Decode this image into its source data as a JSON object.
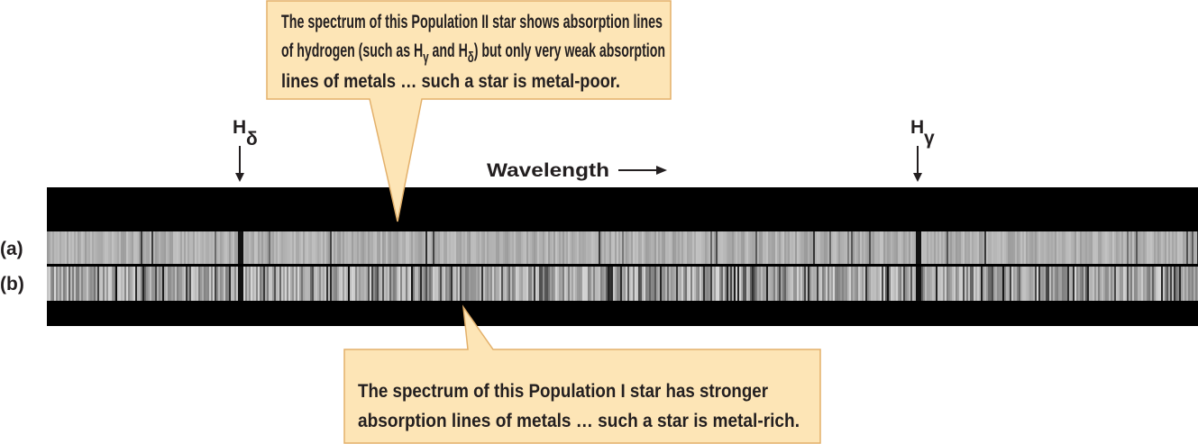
{
  "top_callout": {
    "lines": [
      [
        {
          "text": "The spectrum of this Population II star shows absorption lines"
        }
      ],
      [
        {
          "text": "of hydrogen (such as H"
        },
        {
          "sub": "γ"
        },
        {
          "text": " and H"
        },
        {
          "sub": "δ"
        },
        {
          "text": ") but only very weak absorption"
        }
      ],
      [
        {
          "text": "lines of metals … such a star is metal-poor."
        }
      ]
    ]
  },
  "bottom_callout": {
    "lines": [
      [
        {
          "text": "The spectrum of this Population I star has stronger"
        }
      ],
      [
        {
          "text": "absorption lines of metals … such a star is metal-rich."
        }
      ]
    ]
  },
  "markers": [
    {
      "letter": "H",
      "subscript": "δ"
    },
    {
      "letter": "H",
      "subscript": "γ"
    }
  ],
  "axis_label": "Wavelength",
  "spectra": [
    {
      "label": "(a)"
    },
    {
      "label": "(b)"
    }
  ]
}
